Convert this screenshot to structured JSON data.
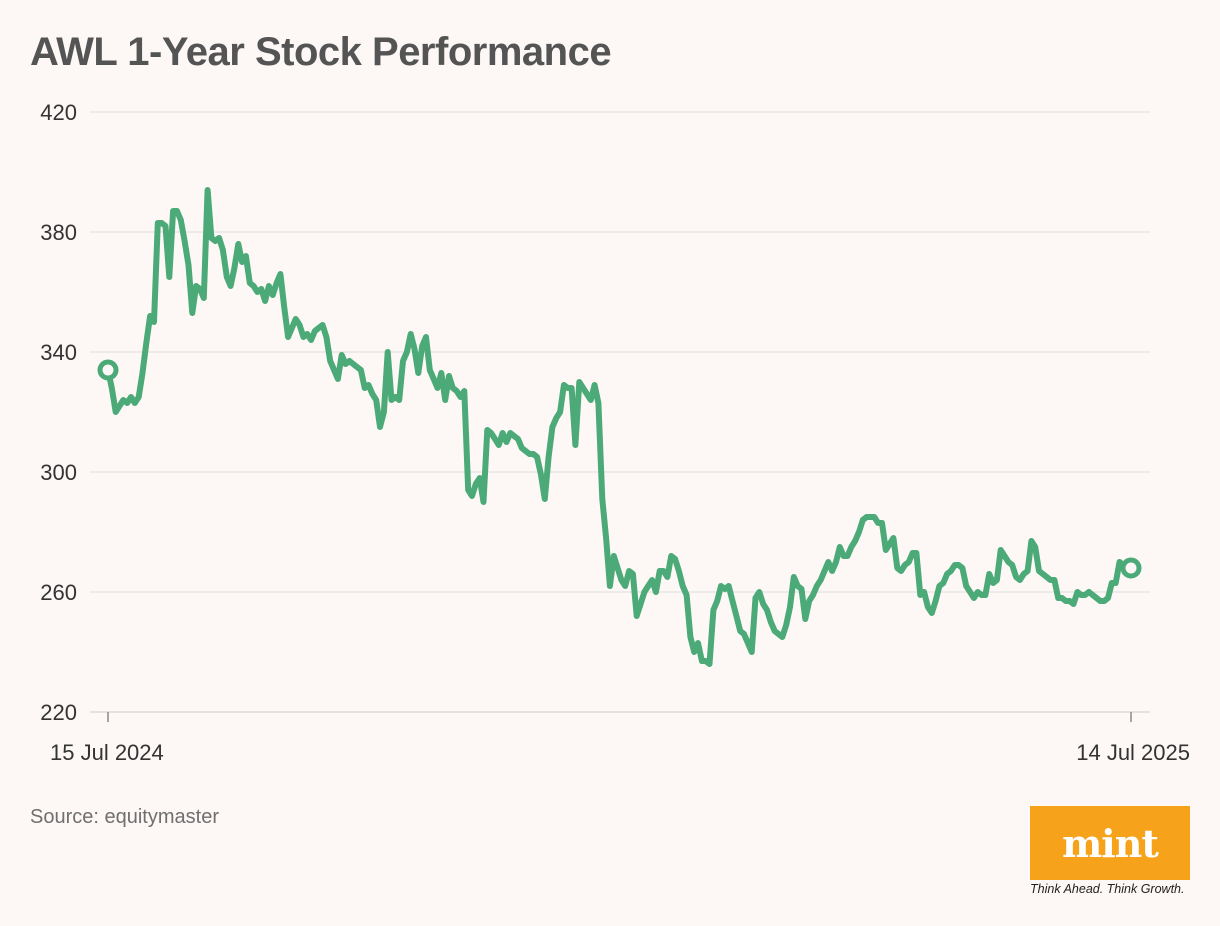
{
  "title": "AWL 1-Year Stock Performance",
  "source": "Source: equitymaster",
  "branding": {
    "logo_text": "mint",
    "tagline": "Think Ahead. Think Growth.",
    "logo_color": "#f7a21b"
  },
  "colors": {
    "line": "#4caa78",
    "grid": "#dddddd",
    "axis": "#cccccc",
    "background": "#fdf8f6"
  },
  "chart_data": {
    "type": "line",
    "title": "AWL 1-Year Stock Performance",
    "xlabel": "",
    "ylabel": "",
    "ylim": [
      220,
      420
    ],
    "yticks": [
      220,
      260,
      300,
      340,
      380,
      420
    ],
    "xtick_labels": [
      "15 Jul 2024",
      "14 Jul 2025"
    ],
    "start_label": "15 Jul 2024",
    "end_label": "14 Jul 2025",
    "grid": true,
    "series": [
      {
        "name": "AWL",
        "values": [
          334.0,
          328.0,
          320.0,
          322.0,
          324.0,
          323.0,
          325.0,
          323.0,
          325.0,
          333.0,
          343.0,
          352.0,
          350.0,
          383.0,
          383.0,
          382.0,
          365.0,
          387.0,
          387.0,
          384.0,
          377.0,
          369.0,
          353.0,
          362.0,
          361.0,
          358.0,
          394.0,
          378.0,
          377.0,
          378.0,
          374.0,
          365.0,
          362.0,
          368.0,
          376.0,
          370.0,
          372.0,
          363.0,
          362.0,
          360.0,
          361.0,
          357.0,
          362.0,
          359.0,
          363.0,
          366.0,
          355.0,
          345.0,
          348.0,
          351.0,
          349.0,
          345.0,
          346.0,
          344.0,
          347.0,
          348.0,
          349.0,
          345.0,
          337.0,
          334.0,
          331.0,
          339.0,
          336.0,
          337.0,
          336.0,
          335.0,
          334.0,
          328.0,
          329.0,
          326.0,
          324.0,
          315.0,
          320.0,
          340.0,
          324.0,
          325.0,
          324.0,
          337.0,
          340.0,
          346.0,
          341.0,
          333.0,
          342.0,
          345.0,
          334.0,
          331.0,
          328.0,
          333.0,
          324.0,
          332.0,
          328.0,
          327.0,
          325.0,
          327.0,
          294.0,
          292.0,
          296.0,
          298.0,
          290.0,
          314.0,
          313.0,
          311.0,
          309.0,
          313.0,
          310.0,
          313.0,
          312.0,
          311.0,
          308.0,
          307.0,
          306.0,
          306.0,
          305.0,
          299.0,
          291.0,
          305.0,
          315.0,
          318.0,
          320.0,
          329.0,
          328.0,
          328.0,
          309.0,
          330.0,
          328.0,
          326.0,
          324.0,
          329.0,
          323.0,
          291.0,
          278.0,
          262.0,
          272.0,
          268.0,
          264.0,
          262.0,
          267.0,
          266.0,
          252.0,
          256.0,
          260.0,
          262.0,
          264.0,
          260.0,
          267.0,
          267.0,
          265.0,
          272.0,
          271.0,
          267.0,
          262.0,
          259.0,
          245.0,
          240.0,
          243.0,
          237.0,
          237.0,
          236.0,
          254.0,
          257.0,
          262.0,
          261.0,
          262.0,
          257.0,
          252.0,
          247.0,
          246.0,
          243.0,
          240.0,
          258.0,
          260.0,
          256.0,
          254.0,
          250.0,
          247.0,
          246.0,
          245.0,
          249.0,
          255.0,
          265.0,
          262.0,
          261.0,
          251.0,
          257.0,
          259.0,
          262.0,
          264.0,
          267.0,
          270.0,
          267.0,
          270.0,
          275.0,
          272.0,
          272.0,
          275.0,
          277.0,
          280.0,
          284.0,
          285.0,
          285.0,
          285.0,
          283.0,
          283.0,
          274.0,
          276.0,
          278.0,
          268.0,
          267.0,
          269.0,
          270.0,
          273.0,
          273.0,
          259.0,
          260.0,
          255.0,
          253.0,
          257.0,
          262.0,
          263.0,
          266.0,
          267.0,
          269.0,
          269.0,
          268.0,
          262.0,
          260.0,
          258.0,
          260.0,
          259.0,
          259.0,
          266.0,
          263.0,
          264.0,
          274.0,
          272.0,
          270.0,
          269.0,
          265.0,
          264.0,
          266.0,
          267.0,
          277.0,
          275.0,
          267.0,
          266.0,
          265.0,
          264.0,
          264.0,
          258.0,
          258.0,
          257.0,
          257.0,
          256.0,
          260.0,
          259.0,
          259.0,
          260.0,
          259.0,
          258.0,
          257.0,
          257.0,
          258.0,
          263.0,
          263.0,
          270.0,
          269.0,
          268.0,
          268.0
        ],
        "start_value": 334.0,
        "end_value": 268.0
      }
    ]
  }
}
